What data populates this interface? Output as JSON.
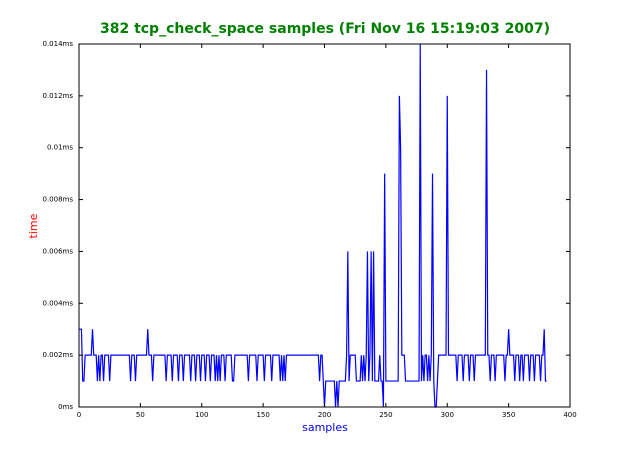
{
  "chart_data": {
    "type": "line",
    "title": "382 tcp_check_space samples (Fri Nov 16 15:19:03 2007)",
    "xlabel": "samples",
    "ylabel": "time",
    "series": [
      {
        "color": "#0000ff",
        "values": [
          0.003,
          0.003,
          0.003,
          0.001,
          0.001,
          0.002,
          0.002,
          0.002,
          0.002,
          0.002,
          0.002,
          0.003,
          0.002,
          0.002,
          0.002,
          0.001,
          0.002,
          0.001,
          0.002,
          0.002,
          0.001,
          0.002,
          0.002,
          0.002,
          0.002,
          0.001,
          0.002,
          0.002,
          0.002,
          0.002,
          0.002,
          0.002,
          0.002,
          0.002,
          0.002,
          0.002,
          0.002,
          0.002,
          0.002,
          0.002,
          0.002,
          0.002,
          0.001,
          0.002,
          0.002,
          0.002,
          0.001,
          0.002,
          0.002,
          0.002,
          0.002,
          0.002,
          0.002,
          0.002,
          0.002,
          0.002,
          0.003,
          0.002,
          0.002,
          0.002,
          0.001,
          0.002,
          0.002,
          0.002,
          0.002,
          0.002,
          0.002,
          0.002,
          0.002,
          0.002,
          0.002,
          0.001,
          0.002,
          0.002,
          0.002,
          0.002,
          0.001,
          0.002,
          0.002,
          0.002,
          0.002,
          0.001,
          0.002,
          0.002,
          0.002,
          0.001,
          0.002,
          0.002,
          0.002,
          0.002,
          0.002,
          0.001,
          0.002,
          0.002,
          0.002,
          0.001,
          0.002,
          0.002,
          0.002,
          0.001,
          0.002,
          0.002,
          0.002,
          0.001,
          0.002,
          0.002,
          0.002,
          0.001,
          0.002,
          0.002,
          0.002,
          0.001,
          0.002,
          0.001,
          0.002,
          0.001,
          0.002,
          0.002,
          0.002,
          0.001,
          0.002,
          0.002,
          0.002,
          0.002,
          0.002,
          0.001,
          0.001,
          0.002,
          0.002,
          0.002,
          0.002,
          0.002,
          0.002,
          0.002,
          0.002,
          0.002,
          0.002,
          0.002,
          0.001,
          0.002,
          0.002,
          0.002,
          0.002,
          0.002,
          0.002,
          0.001,
          0.002,
          0.002,
          0.002,
          0.002,
          0.002,
          0.001,
          0.002,
          0.002,
          0.002,
          0.002,
          0.002,
          0.001,
          0.002,
          0.002,
          0.002,
          0.002,
          0.002,
          0.002,
          0.001,
          0.002,
          0.001,
          0.002,
          0.001,
          0.002,
          0.002,
          0.002,
          0.002,
          0.002,
          0.002,
          0.002,
          0.002,
          0.002,
          0.002,
          0.002,
          0.002,
          0.002,
          0.002,
          0.002,
          0.002,
          0.002,
          0.002,
          0.002,
          0.002,
          0.002,
          0.002,
          0.002,
          0.002,
          0.002,
          0.002,
          0.002,
          0.001,
          0.002,
          0.002,
          0.001,
          0,
          0.001,
          0.001,
          0.001,
          0.001,
          0.001,
          0.001,
          0.001,
          0.001,
          0,
          0.001,
          0,
          0.001,
          0.001,
          0.001,
          0.001,
          0.001,
          0.001,
          0.002,
          0.006,
          0.001,
          0.002,
          0.002,
          0.002,
          0.002,
          0.002,
          0.001,
          0.001,
          0.001,
          0.001,
          0.002,
          0.001,
          0.002,
          0.001,
          0.002,
          0.006,
          0.001,
          0.002,
          0.006,
          0.001,
          0.006,
          0.001,
          0.001,
          0.001,
          0.001,
          0.002,
          0.001,
          0.001,
          0,
          0.009,
          0.001,
          0.001,
          0.001,
          0.001,
          0.001,
          0.001,
          0.001,
          0.001,
          0.001,
          0.001,
          0.001,
          0.012,
          0.01,
          0.002,
          0.002,
          0.002,
          0.001,
          0.001,
          0.001,
          0.001,
          0.001,
          0.001,
          0.001,
          0.001,
          0.001,
          0.001,
          0.001,
          0.001,
          0.014,
          0.001,
          0.002,
          0.001,
          0.002,
          0.002,
          0.001,
          0.002,
          0.001,
          0.002,
          0.009,
          0.001,
          0,
          0,
          0.001,
          0.002,
          0.002,
          0.002,
          0.002,
          0.002,
          0.002,
          0.002,
          0.012,
          0.002,
          0.002,
          0.002,
          0.002,
          0.002,
          0.002,
          0.002,
          0.001,
          0.002,
          0.002,
          0.002,
          0.002,
          0.001,
          0.002,
          0.002,
          0.002,
          0.002,
          0.001,
          0.002,
          0.002,
          0.002,
          0.001,
          0.002,
          0.002,
          0.002,
          0.002,
          0.002,
          0.002,
          0.002,
          0.002,
          0.002,
          0.013,
          0.002,
          0.002,
          0.001,
          0.002,
          0.002,
          0.002,
          0.001,
          0.002,
          0.002,
          0.002,
          0.002,
          0.002,
          0.002,
          0.002,
          0.001,
          0.002,
          0.002,
          0.003,
          0.002,
          0.002,
          0.002,
          0.002,
          0.001,
          0.002,
          0.002,
          0.002,
          0.001,
          0.002,
          0.002,
          0.001,
          0.002,
          0.002,
          0.002,
          0.002,
          0.001,
          0.002,
          0.002,
          0.002,
          0.001,
          0.002,
          0.002,
          0.002,
          0.002,
          0.001,
          0.002,
          0.002,
          0.003,
          0.001,
          0.001
        ]
      }
    ],
    "xlim": [
      0,
      400
    ],
    "xticks": [
      0,
      50,
      100,
      150,
      200,
      250,
      300,
      350,
      400
    ],
    "ylim": [
      0,
      0.014
    ],
    "yticks": [
      {
        "value": 0,
        "label": "0ms"
      },
      {
        "value": 0.002,
        "label": "0.002ms"
      },
      {
        "value": 0.004,
        "label": "0.004ms"
      },
      {
        "value": 0.006,
        "label": "0.006ms"
      },
      {
        "value": 0.008,
        "label": "0.008ms"
      },
      {
        "value": 0.01,
        "label": "0.01ms"
      },
      {
        "value": 0.012,
        "label": "0.012ms"
      },
      {
        "value": 0.014,
        "label": "0.014ms"
      }
    ],
    "title_color": "#008000",
    "xlabel_color": "#0000ff",
    "ylabel_color": "#ff0000"
  }
}
